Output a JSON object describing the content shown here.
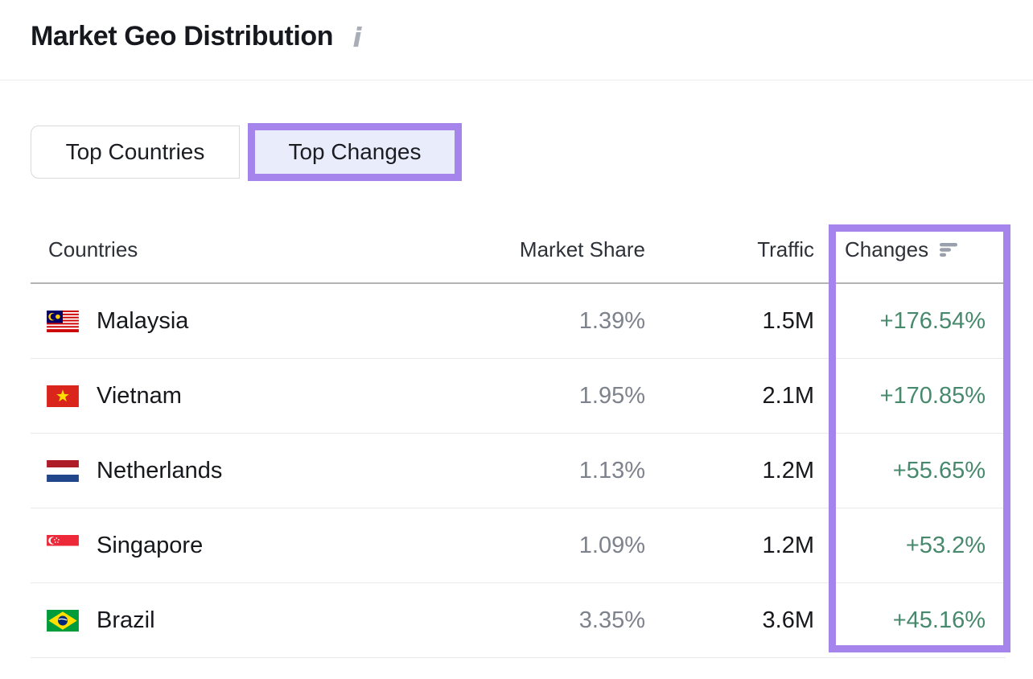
{
  "header": {
    "title": "Market Geo Distribution",
    "info_icon": "info-icon",
    "info_glyph": "i"
  },
  "tabs": [
    {
      "label": "Top Countries",
      "selected": false
    },
    {
      "label": "Top Changes",
      "selected": true,
      "annotated": true
    }
  ],
  "table": {
    "columns": [
      "Countries",
      "Market Share",
      "Traffic",
      "Changes"
    ],
    "sort_icon": "sort-descending-icon",
    "rows": [
      {
        "country": "Malaysia",
        "flag": "flag-malaysia",
        "market_share": "1.39%",
        "traffic": "1.5M",
        "change": "+176.54%"
      },
      {
        "country": "Vietnam",
        "flag": "flag-vietnam",
        "market_share": "1.95%",
        "traffic": "2.1M",
        "change": "+170.85%"
      },
      {
        "country": "Netherlands",
        "flag": "flag-netherlands",
        "market_share": "1.13%",
        "traffic": "1.2M",
        "change": "+55.65%"
      },
      {
        "country": "Singapore",
        "flag": "flag-singapore",
        "market_share": "1.09%",
        "traffic": "1.2M",
        "change": "+53.2%"
      },
      {
        "country": "Brazil",
        "flag": "flag-brazil",
        "market_share": "3.35%",
        "traffic": "3.6M",
        "change": "+45.16%"
      }
    ]
  },
  "colors": {
    "annotation_purple": "#a585ec",
    "positive_change_green": "#47896c",
    "selected_tab_bg": "#e9edfb",
    "muted_text": "#7d828c",
    "dark_text": "#17181c"
  }
}
